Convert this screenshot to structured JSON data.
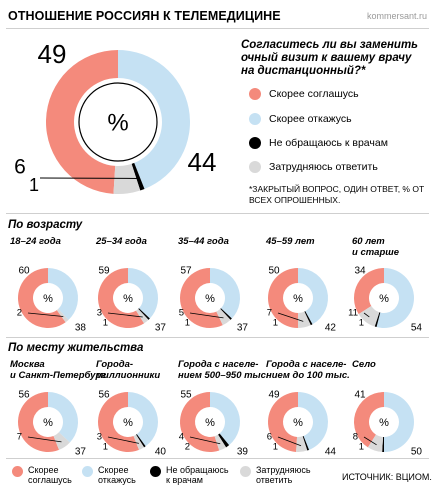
{
  "header": {
    "title": "ОТНОШЕНИЕ РОССИЯН К ТЕЛЕМЕДИЦИНЕ",
    "site": "kommersant.ru"
  },
  "question": "Согласитесь ли вы заменить очный визит к вашему врачу на дистанционный?*",
  "note": "*ЗАКРЫТЫЙ ВОПРОС, ОДИН ОТВЕТ, % ОТ ВСЕХ ОПРОШЕННЫХ.",
  "center_symbol": "%",
  "colors": {
    "agree": "#f48a7c",
    "refuse": "#c5e1f3",
    "no_doctor": "#000000",
    "undecided": "#d9d9d9"
  },
  "legend": {
    "agree": "Скорее соглашусь",
    "refuse": "Скорее откажусь",
    "no_doctor": "Не обращаюсь к врачам",
    "undecided": "Затрудняюсь ответить"
  },
  "bottom_legend": {
    "agree": [
      "Скорее",
      "соглашусь"
    ],
    "refuse": [
      "Скорее",
      "откажусь"
    ],
    "no_doctor": [
      "Не обращаюсь",
      "к врачам"
    ],
    "undecided": [
      "Затрудняюсь",
      "ответить"
    ]
  },
  "sections": {
    "age": "По возрасту",
    "place": "По месту жительства"
  },
  "source": "ИСТОЧНИК: ВЦИОМ.",
  "chart_data": [
    {
      "type": "pie",
      "group": "Все опрошенные",
      "categories": [
        "Скорее соглашусь",
        "Скорее откажусь",
        "Не обращаюсь к врачам",
        "Затрудняюсь ответить"
      ],
      "values": [
        49,
        44,
        1,
        6
      ]
    },
    {
      "type": "pie",
      "group": "18–24 года",
      "values": [
        60,
        38,
        0,
        2
      ]
    },
    {
      "type": "pie",
      "group": "25–34 года",
      "values": [
        59,
        37,
        1,
        3
      ]
    },
    {
      "type": "pie",
      "group": "35–44 года",
      "values": [
        57,
        37,
        1,
        5
      ]
    },
    {
      "type": "pie",
      "group": "45–59 лет",
      "values": [
        50,
        42,
        1,
        7
      ]
    },
    {
      "type": "pie",
      "group": "60 лет и старше",
      "values": [
        34,
        54,
        1,
        11
      ]
    },
    {
      "type": "pie",
      "group": "Москва и Санкт-Петербург",
      "values": [
        56,
        37,
        0,
        7
      ]
    },
    {
      "type": "pie",
      "group": "Города-миллионники",
      "values": [
        56,
        40,
        1,
        3
      ]
    },
    {
      "type": "pie",
      "group": "Города с населением 500–950 тыс.",
      "values": [
        55,
        39,
        2,
        4
      ]
    },
    {
      "type": "pie",
      "group": "Города с населением до 100 тыс.",
      "values": [
        49,
        44,
        1,
        6
      ]
    },
    {
      "type": "pie",
      "group": "Село",
      "values": [
        41,
        50,
        1,
        8
      ]
    }
  ],
  "small_titles": {
    "age": [
      [
        "18–24 года"
      ],
      [
        "25–34 года"
      ],
      [
        "35–44 года"
      ],
      [
        "45–59 лет"
      ],
      [
        "60 лет",
        "и старше"
      ]
    ],
    "place": [
      [
        "Москва",
        "и Санкт-Петербург"
      ],
      [
        "Города-",
        "миллионники"
      ],
      [
        "Города с населе-",
        "нием 500–950 тыс."
      ],
      [
        "Города с населе-",
        "нием до 100 тыс."
      ],
      [
        "Село"
      ]
    ]
  }
}
